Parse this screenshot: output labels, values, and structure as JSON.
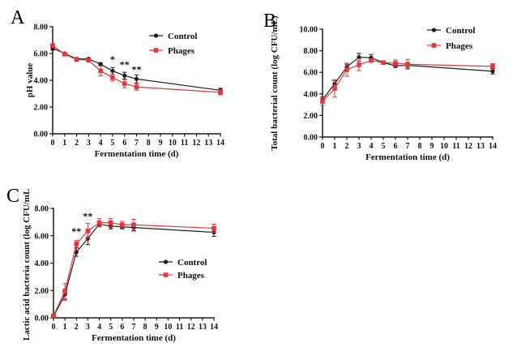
{
  "figure": {
    "background": "#ffffff"
  },
  "panels": [
    {
      "label": "A"
    },
    {
      "label": "B"
    },
    {
      "label": "C"
    }
  ],
  "colors": {
    "control": "#1f1f1f",
    "phages": "#e6363a",
    "axis": "#1a1a1a"
  },
  "legend": {
    "control_label": "Control",
    "phages_label": "Phages"
  },
  "chart_data": [
    {
      "panel": "A",
      "type": "line",
      "title": "",
      "xlabel": "Fermentation time (d)",
      "ylabel": "pH value",
      "xlim": [
        0,
        14
      ],
      "ylim": [
        0,
        8
      ],
      "xticks": [
        0,
        1,
        2,
        3,
        4,
        5,
        6,
        7,
        8,
        9,
        10,
        11,
        12,
        13,
        14
      ],
      "yticks": [
        0,
        2,
        4,
        6,
        8
      ],
      "ytick_labels": [
        "0.00",
        "2.00",
        "4.00",
        "6.00",
        "8.00"
      ],
      "grid": false,
      "legend_position": "top-right",
      "x": [
        0,
        1,
        2,
        3,
        4,
        5,
        6,
        7,
        14
      ],
      "series": [
        {
          "name": "Control",
          "marker": "circle",
          "color": "#1f1f1f",
          "values": [
            6.4,
            6.0,
            5.6,
            5.6,
            5.2,
            4.7,
            4.35,
            4.1,
            3.25
          ],
          "errors": [
            0.15,
            0.08,
            0.08,
            0.08,
            0.12,
            0.25,
            0.25,
            0.3,
            0.15
          ]
        },
        {
          "name": "Phages",
          "marker": "square",
          "color": "#e6363a",
          "values": [
            6.6,
            5.95,
            5.55,
            5.5,
            4.7,
            4.2,
            3.75,
            3.5,
            3.1
          ],
          "errors": [
            0.12,
            0.08,
            0.08,
            0.1,
            0.37,
            0.25,
            0.3,
            0.25,
            0.18
          ]
        }
      ],
      "annotations": [
        {
          "text": "*",
          "x": 5,
          "y": 5.7
        },
        {
          "text": "**",
          "x": 6,
          "y": 5.3
        },
        {
          "text": "**",
          "x": 7,
          "y": 4.95
        }
      ]
    },
    {
      "panel": "B",
      "type": "line",
      "title": "",
      "xlabel": "Fermentation time (d)",
      "ylabel": "Total bacterial count (log CFU/mL)",
      "xlim": [
        0,
        14
      ],
      "ylim": [
        0,
        10
      ],
      "xticks": [
        0,
        1,
        2,
        3,
        4,
        5,
        6,
        7,
        8,
        9,
        10,
        11,
        12,
        13,
        14
      ],
      "yticks": [
        0,
        2,
        4,
        6,
        8,
        10
      ],
      "ytick_labels": [
        "0.00",
        "2.00",
        "4.00",
        "6.00",
        "8.00",
        "10.00"
      ],
      "grid": false,
      "legend_position": "top-right",
      "x": [
        0,
        1,
        2,
        3,
        4,
        5,
        6,
        7,
        14
      ],
      "series": [
        {
          "name": "Control",
          "marker": "circle",
          "color": "#1f1f1f",
          "values": [
            3.45,
            4.95,
            6.5,
            7.4,
            7.35,
            6.9,
            6.6,
            6.65,
            6.1
          ],
          "errors": [
            0.25,
            0.3,
            0.25,
            0.35,
            0.3,
            0.1,
            0.15,
            0.25,
            0.25
          ]
        },
        {
          "name": "Phages",
          "marker": "square",
          "color": "#e6363a",
          "values": [
            3.3,
            4.5,
            6.25,
            6.7,
            7.1,
            6.9,
            6.85,
            6.75,
            6.55
          ],
          "errors": [
            0.35,
            0.8,
            0.6,
            0.55,
            0.15,
            0.1,
            0.3,
            0.45,
            0.25
          ]
        }
      ],
      "annotations": []
    },
    {
      "panel": "C",
      "type": "line",
      "title": "",
      "xlabel": "Fermentation time (d)",
      "ylabel": "Lactic acid bacteria count (log CFU/mL)",
      "xlim": [
        0,
        14
      ],
      "ylim": [
        0,
        8
      ],
      "xticks": [
        0,
        1,
        2,
        3,
        4,
        5,
        6,
        7,
        8,
        9,
        10,
        11,
        12,
        13,
        14
      ],
      "yticks": [
        0,
        2,
        4,
        6,
        8
      ],
      "ytick_labels": [
        "0.00",
        "2.00",
        "4.00",
        "6.00",
        "8.00"
      ],
      "grid": false,
      "legend_position": "middle-right",
      "x": [
        0,
        1,
        2,
        3,
        4,
        5,
        6,
        7,
        14
      ],
      "series": [
        {
          "name": "Control",
          "marker": "circle",
          "color": "#1f1f1f",
          "values": [
            0.1,
            1.7,
            4.8,
            5.8,
            6.85,
            6.7,
            6.65,
            6.6,
            6.25
          ],
          "errors": [
            0.05,
            0.4,
            0.3,
            0.45,
            0.15,
            0.2,
            0.15,
            0.25,
            0.3
          ]
        },
        {
          "name": "Phages",
          "marker": "square",
          "color": "#e6363a",
          "values": [
            0.15,
            1.95,
            5.4,
            6.35,
            6.95,
            6.95,
            6.8,
            6.8,
            6.55
          ],
          "errors": [
            0.05,
            0.55,
            0.25,
            0.55,
            0.3,
            0.3,
            0.25,
            0.4,
            0.3
          ]
        }
      ],
      "annotations": [
        {
          "text": "**",
          "x": 2,
          "y": 6.45
        },
        {
          "text": "**",
          "x": 3,
          "y": 7.55
        }
      ]
    }
  ]
}
